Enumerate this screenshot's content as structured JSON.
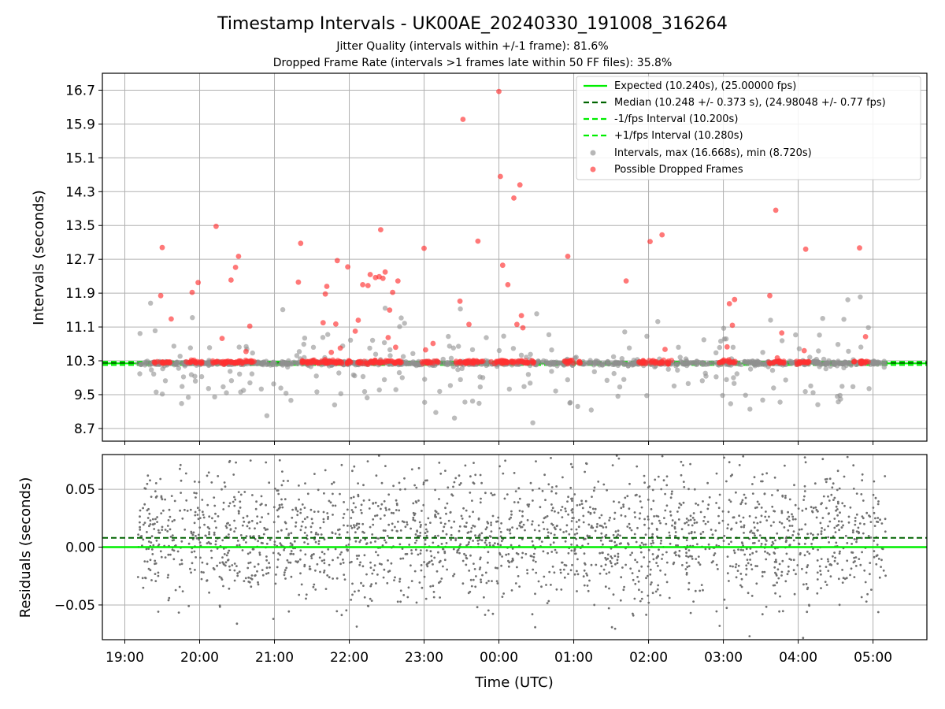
{
  "chart_data": {
    "type": "scatter",
    "title": "Timestamp Intervals - UK00AE_20240330_191008_316264",
    "subtitle": "Jitter Quality (intervals within +/-1 frame): 81.6%",
    "subtitle2": "Dropped Frame Rate (intervals >1 frames late within 50 FF files): 35.8%",
    "xlabel": "Time (UTC)",
    "x_ticks": [
      "19:00",
      "20:00",
      "21:00",
      "22:00",
      "23:00",
      "00:00",
      "01:00",
      "02:00",
      "03:00",
      "04:00",
      "05:00"
    ],
    "x_range_hours": [
      -0.3,
      10.72
    ],
    "x_data_range_hours": [
      0.17,
      10.17
    ],
    "colors": {
      "expected": "#00ee00",
      "median": "#006400",
      "interval_points": "#909090",
      "dropped_points": "#ff3030",
      "residual_points": "#707070"
    },
    "top_panel": {
      "ylabel": "Intervals (seconds)",
      "y_ticks": [
        "16.7",
        "15.9",
        "15.1",
        "14.3",
        "13.5",
        "12.7",
        "11.9",
        "11.1",
        "10.3",
        "9.5",
        "8.7"
      ],
      "ylim": [
        8.4,
        17.1
      ],
      "expected": 10.24,
      "median": 10.248,
      "minus_fps": 10.2,
      "plus_fps": 10.28,
      "legend": [
        "Expected (10.240s), (25.00000 fps)",
        "Median (10.248 +/- 0.373 s), (24.98048 +/- 0.77 fps)",
        "-1/fps Interval (10.200s)",
        "+1/fps Interval (10.280s)",
        "Intervals, max (16.668s), min (8.720s)",
        "Possible Dropped Frames"
      ],
      "dropped_highlights": [
        [
          0.5,
          12.98
        ],
        [
          0.48,
          11.84
        ],
        [
          0.62,
          11.29
        ],
        [
          0.9,
          11.92
        ],
        [
          0.98,
          12.15
        ],
        [
          1.22,
          13.48
        ],
        [
          1.3,
          10.83
        ],
        [
          1.42,
          12.21
        ],
        [
          1.48,
          12.51
        ],
        [
          1.52,
          12.77
        ],
        [
          1.62,
          10.52
        ],
        [
          1.67,
          11.12
        ],
        [
          2.32,
          12.16
        ],
        [
          2.35,
          13.08
        ],
        [
          2.65,
          11.2
        ],
        [
          2.68,
          11.88
        ],
        [
          2.7,
          12.06
        ],
        [
          2.76,
          10.5
        ],
        [
          2.82,
          11.17
        ],
        [
          2.84,
          12.67
        ],
        [
          2.88,
          10.6
        ],
        [
          2.98,
          12.52
        ],
        [
          3.08,
          11.0
        ],
        [
          3.12,
          11.26
        ],
        [
          3.18,
          12.1
        ],
        [
          3.25,
          12.08
        ],
        [
          3.28,
          12.34
        ],
        [
          3.35,
          12.27
        ],
        [
          3.4,
          12.29
        ],
        [
          3.42,
          13.4
        ],
        [
          3.45,
          12.25
        ],
        [
          3.48,
          12.4
        ],
        [
          3.54,
          11.5
        ],
        [
          3.58,
          11.92
        ],
        [
          3.65,
          12.19
        ],
        [
          3.52,
          10.85
        ],
        [
          4.0,
          12.96
        ],
        [
          4.02,
          10.56
        ],
        [
          4.12,
          10.71
        ],
        [
          4.48,
          11.71
        ],
        [
          4.52,
          16.01
        ],
        [
          4.6,
          11.16
        ],
        [
          4.72,
          13.13
        ],
        [
          5.02,
          14.66
        ],
        [
          5.05,
          12.56
        ],
        [
          5.12,
          12.1
        ],
        [
          5.2,
          14.15
        ],
        [
          5.28,
          14.46
        ],
        [
          5.3,
          11.37
        ],
        [
          5.24,
          11.16
        ],
        [
          5.32,
          11.08
        ],
        [
          5.92,
          12.77
        ],
        [
          6.7,
          12.19
        ],
        [
          7.02,
          13.12
        ],
        [
          7.18,
          13.28
        ],
        [
          7.22,
          10.57
        ],
        [
          8.05,
          10.63
        ],
        [
          8.08,
          11.65
        ],
        [
          8.15,
          11.75
        ],
        [
          8.12,
          11.14
        ],
        [
          8.62,
          11.84
        ],
        [
          8.7,
          13.86
        ],
        [
          8.78,
          10.96
        ],
        [
          8.72,
          10.37
        ],
        [
          9.1,
          12.94
        ],
        [
          9.08,
          10.54
        ],
        [
          9.82,
          12.97
        ],
        [
          9.9,
          10.87
        ],
        [
          3.62,
          10.62
        ],
        [
          5.0,
          16.67
        ]
      ]
    },
    "bottom_panel": {
      "ylabel": "Residuals (seconds)",
      "y_ticks": [
        "0.05",
        "0.00",
        "−0.05"
      ],
      "ylim": [
        -0.08,
        0.08
      ],
      "expected": 0.0,
      "median_offset": 0.008
    }
  }
}
